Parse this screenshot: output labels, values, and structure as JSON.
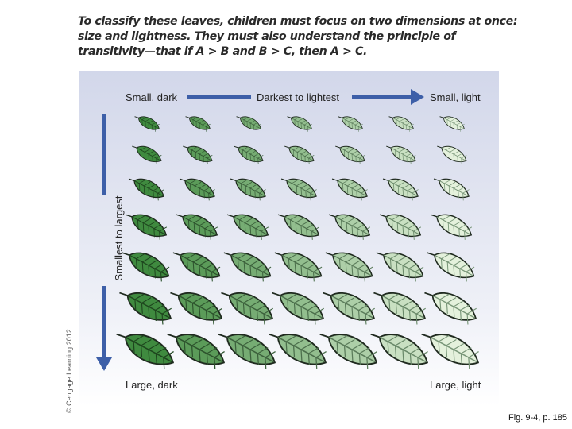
{
  "caption": "To classify these leaves, children must focus on two dimensions at once: size and lightness. They must also understand the principle of transitivity—that if A > B and B > C, then A > C.",
  "copyright": "© Cengage Learning 2012",
  "labels": {
    "top_left": "Small, dark",
    "top_center": "Darkest to lightest",
    "top_right": "Small, light",
    "vertical": "Smallest to largest",
    "bottom_left": "Large, dark",
    "bottom_right": "Large, light"
  },
  "figure_ref": "Fig. 9-4, p. 185",
  "colors": {
    "arrow_blue": "#3d5fa8",
    "leaf_darkest": "#3f8a3f",
    "leaf_lightest": "#e4f1dc",
    "panel_top": "#d2d7ea"
  },
  "grid": {
    "rows": 7,
    "columns": 7
  }
}
